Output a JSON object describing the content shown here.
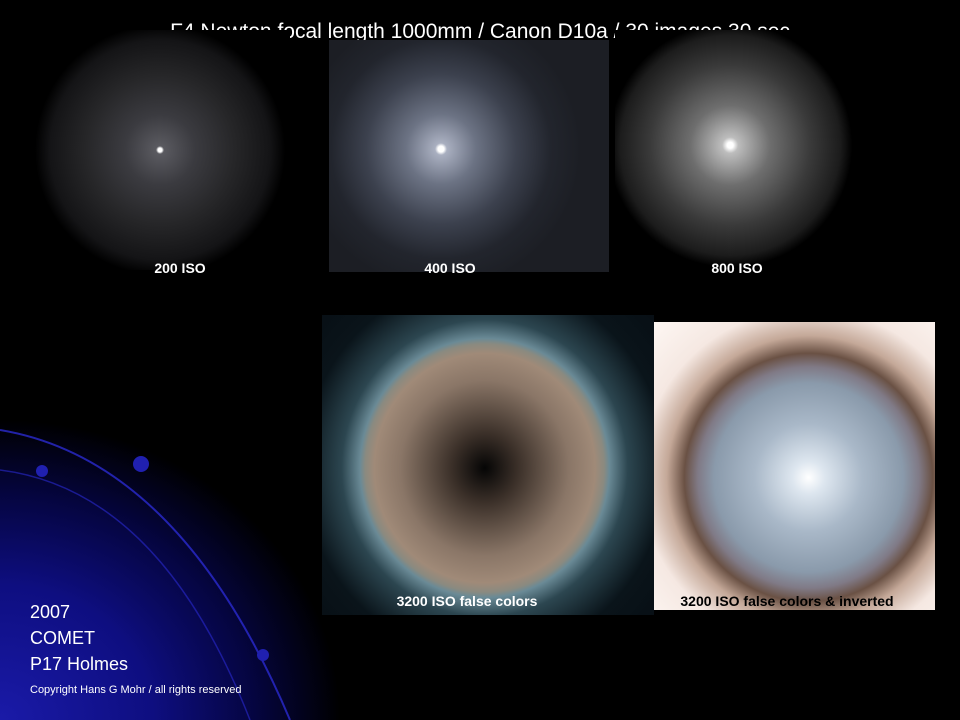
{
  "title": "F4 Newton focal length 1000mm / Canon D10a / 30 images 30 sec",
  "photos": [
    {
      "label": "200 ISO"
    },
    {
      "label": "400 ISO"
    },
    {
      "label": "800 ISO"
    },
    {
      "label": "3200 ISO false colors"
    },
    {
      "label": "3200 ISO false colors & inverted"
    }
  ],
  "footer": {
    "year": "2007",
    "subject": "COMET",
    "name": "P17 Holmes",
    "copyright": "Copyright Hans G Mohr / all rights reserved"
  },
  "colors": {
    "background": "#000000",
    "accent_blue": "#1a1aa8"
  }
}
